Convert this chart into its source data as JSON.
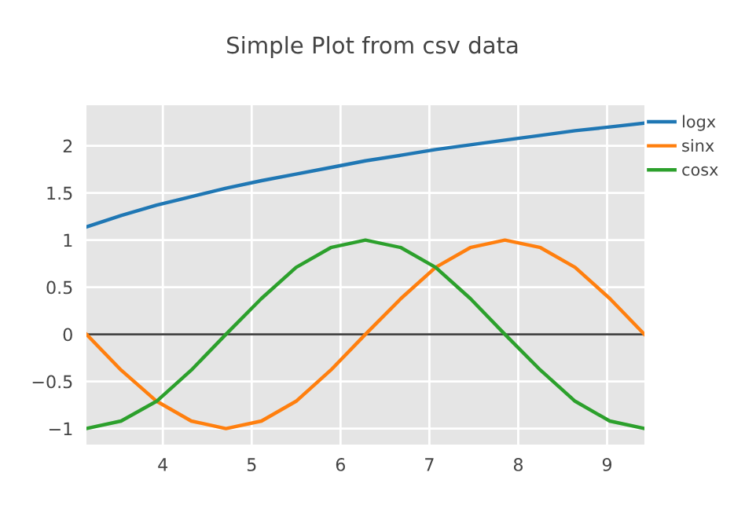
{
  "chart_data": {
    "type": "line",
    "title": "Simple Plot from csv data",
    "x": [
      3.14,
      3.53,
      3.93,
      4.32,
      4.71,
      5.11,
      5.5,
      5.89,
      6.28,
      6.68,
      7.07,
      7.46,
      7.85,
      8.25,
      8.64,
      9.03,
      9.42
    ],
    "series": [
      {
        "name": "logx",
        "color": "#1f77b4",
        "values": [
          1.14,
          1.26,
          1.37,
          1.46,
          1.55,
          1.63,
          1.7,
          1.77,
          1.84,
          1.9,
          1.96,
          2.01,
          2.06,
          2.11,
          2.16,
          2.2,
          2.24
        ]
      },
      {
        "name": "sinx",
        "color": "#ff7f0e",
        "values": [
          0,
          -0.38,
          -0.71,
          -0.92,
          -1,
          -0.92,
          -0.71,
          -0.38,
          0,
          0.38,
          0.71,
          0.92,
          1,
          0.92,
          0.71,
          0.38,
          0
        ]
      },
      {
        "name": "cosx",
        "color": "#2ca02c",
        "values": [
          -1,
          -0.92,
          -0.71,
          -0.38,
          0,
          0.38,
          0.71,
          0.92,
          1,
          0.92,
          0.71,
          0.38,
          0,
          -0.38,
          -0.71,
          -0.92,
          -1
        ]
      }
    ],
    "xlim": [
      3.14,
      9.42
    ],
    "ylim": [
      -1.17,
      2.43
    ],
    "xticks": [
      4,
      5,
      6,
      7,
      8,
      9
    ],
    "yticks": [
      {
        "value": -1,
        "label": "−1"
      },
      {
        "value": -0.5,
        "label": "−0.5"
      },
      0,
      0.5,
      1,
      1.5,
      2
    ],
    "ref_lines": [
      {
        "axis": "y",
        "value": 0,
        "color": "#444444"
      }
    ],
    "grid": true,
    "legend": "top right",
    "marker": "none",
    "line_style": "solid"
  }
}
